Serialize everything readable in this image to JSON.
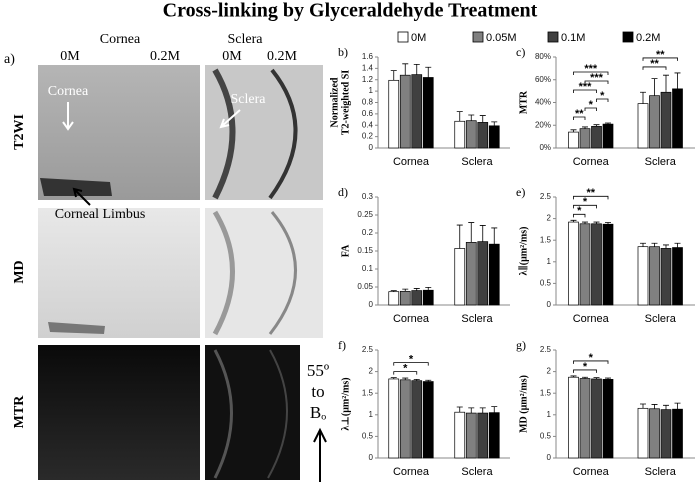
{
  "title": "Cross-linking by Glyceraldehyde Treatment",
  "image_panel": {
    "label": "a)",
    "columns": [
      "Cornea",
      "Sclera"
    ],
    "concentrations": [
      "0M",
      "0.2M",
      "0M",
      "0.2M"
    ],
    "rows": [
      "T2WI",
      "MD",
      "MTR"
    ],
    "annotations": [
      "Cornea",
      "Sclera",
      "Corneal Limbus"
    ],
    "orientation": [
      "55º",
      "to",
      "Bₒ"
    ]
  },
  "legend": [
    {
      "name": "0M",
      "color": "#ffffff"
    },
    {
      "name": "0.05M",
      "color": "#808080"
    },
    {
      "name": "0.1M",
      "color": "#404040"
    },
    {
      "name": "0.2M",
      "color": "#000000"
    }
  ],
  "chart_data": [
    {
      "type": "bar",
      "panel": "b)",
      "ylabel": [
        "Normalized",
        "T2-weighted SI"
      ],
      "categories": [
        "Cornea",
        "Sclera"
      ],
      "ylim": [
        0,
        1.6
      ],
      "yticks": [
        0,
        0.2,
        0.4,
        0.6,
        0.8,
        1,
        1.2,
        1.4,
        1.6
      ],
      "series": [
        {
          "values": [
            1.19,
            0.47
          ],
          "errors": [
            0.17,
            0.17
          ]
        },
        {
          "values": [
            1.28,
            0.48
          ],
          "errors": [
            0.2,
            0.1
          ]
        },
        {
          "values": [
            1.29,
            0.45
          ],
          "errors": [
            0.18,
            0.12
          ]
        },
        {
          "values": [
            1.24,
            0.39
          ],
          "errors": [
            0.18,
            0.07
          ]
        }
      ]
    },
    {
      "type": "bar",
      "panel": "c)",
      "ylabel": [
        "MTR"
      ],
      "categories": [
        "Cornea",
        "Sclera"
      ],
      "ylim": [
        0,
        80
      ],
      "yticks": [
        {
          "value": 0,
          "label": "0%"
        },
        {
          "value": 20,
          "label": "20%"
        },
        {
          "value": 40,
          "label": "40%"
        },
        {
          "value": 60,
          "label": "60%"
        },
        {
          "value": 80,
          "label": "80%"
        }
      ],
      "series": [
        {
          "values": [
            14,
            39
          ],
          "errors": [
            2,
            10
          ]
        },
        {
          "values": [
            17,
            46
          ],
          "errors": [
            1.5,
            15
          ]
        },
        {
          "values": [
            19,
            49
          ],
          "errors": [
            1.5,
            15
          ]
        },
        {
          "values": [
            21,
            52
          ],
          "errors": [
            1,
            14
          ]
        }
      ],
      "annotations": [
        {
          "category": "Cornea",
          "between": [
            "0M",
            "0.05M"
          ],
          "text": "**"
        },
        {
          "category": "Cornea",
          "between": [
            "0.05M",
            "0.1M"
          ],
          "text": "*"
        },
        {
          "category": "Cornea",
          "between": [
            "0.1M",
            "0.2M"
          ],
          "text": "*"
        },
        {
          "category": "Cornea",
          "between": [
            "0M",
            "0.1M"
          ],
          "text": "***"
        },
        {
          "category": "Cornea",
          "between": [
            "0.05M",
            "0.2M"
          ],
          "text": "***"
        },
        {
          "category": "Cornea",
          "between": [
            "0M",
            "0.2M"
          ],
          "text": "***"
        },
        {
          "category": "Sclera",
          "between": [
            "0M",
            "0.1M"
          ],
          "text": "**"
        },
        {
          "category": "Sclera",
          "between": [
            "0M",
            "0.2M"
          ],
          "text": "**"
        }
      ]
    },
    {
      "type": "bar",
      "panel": "d)",
      "ylabel": [
        "FA"
      ],
      "categories": [
        "Cornea",
        "Sclera"
      ],
      "ylim": [
        0,
        0.3
      ],
      "yticks": [
        0,
        0.05,
        0.1,
        0.15,
        0.2,
        0.25,
        0.3
      ],
      "series": [
        {
          "values": [
            0.037,
            0.157
          ],
          "errors": [
            0.003,
            0.065
          ]
        },
        {
          "values": [
            0.038,
            0.174
          ],
          "errors": [
            0.006,
            0.055
          ]
        },
        {
          "values": [
            0.04,
            0.176
          ],
          "errors": [
            0.006,
            0.045
          ]
        },
        {
          "values": [
            0.041,
            0.169
          ],
          "errors": [
            0.008,
            0.045
          ]
        }
      ]
    },
    {
      "type": "bar",
      "panel": "e)",
      "ylabel": [
        "λ∥(μm²/ms)"
      ],
      "categories": [
        "Cornea",
        "Sclera"
      ],
      "ylim": [
        0,
        2.5
      ],
      "yticks": [
        0,
        0.5,
        1,
        1.5,
        2,
        2.5
      ],
      "series": [
        {
          "values": [
            1.92,
            1.35
          ],
          "errors": [
            0.04,
            0.08
          ]
        },
        {
          "values": [
            1.88,
            1.35
          ],
          "errors": [
            0.04,
            0.08
          ]
        },
        {
          "values": [
            1.88,
            1.31
          ],
          "errors": [
            0.04,
            0.08
          ]
        },
        {
          "values": [
            1.87,
            1.33
          ],
          "errors": [
            0.04,
            0.1
          ]
        }
      ],
      "annotations": [
        {
          "category": "Cornea",
          "between": [
            "0M",
            "0.05M"
          ],
          "text": "*"
        },
        {
          "category": "Cornea",
          "between": [
            "0M",
            "0.1M"
          ],
          "text": "*"
        },
        {
          "category": "Cornea",
          "between": [
            "0M",
            "0.2M"
          ],
          "text": "**"
        }
      ]
    },
    {
      "type": "bar",
      "panel": "f)",
      "ylabel": [
        "λ⊥(μm²/ms)"
      ],
      "categories": [
        "Cornea",
        "Sclera"
      ],
      "ylim": [
        0,
        2.5
      ],
      "yticks": [
        0,
        0.5,
        1,
        1.5,
        2,
        2.5
      ],
      "series": [
        {
          "values": [
            1.83,
            1.06
          ],
          "errors": [
            0.03,
            0.12
          ]
        },
        {
          "values": [
            1.81,
            1.04
          ],
          "errors": [
            0.04,
            0.12
          ]
        },
        {
          "values": [
            1.79,
            1.04
          ],
          "errors": [
            0.03,
            0.12
          ]
        },
        {
          "values": [
            1.77,
            1.05
          ],
          "errors": [
            0.03,
            0.14
          ]
        }
      ],
      "annotations": [
        {
          "category": "Cornea",
          "between": [
            "0M",
            "0.1M"
          ],
          "text": "*"
        },
        {
          "category": "Cornea",
          "between": [
            "0M",
            "0.2M"
          ],
          "text": "*"
        }
      ]
    },
    {
      "type": "bar",
      "panel": "g)",
      "ylabel": [
        "MD (μm²/ms)"
      ],
      "categories": [
        "Cornea",
        "Sclera"
      ],
      "ylim": [
        0,
        2.5
      ],
      "yticks": [
        0,
        0.5,
        1,
        1.5,
        2,
        2.5
      ],
      "series": [
        {
          "values": [
            1.87,
            1.15
          ],
          "errors": [
            0.03,
            0.1
          ]
        },
        {
          "values": [
            1.84,
            1.14
          ],
          "errors": [
            0.03,
            0.1
          ]
        },
        {
          "values": [
            1.83,
            1.12
          ],
          "errors": [
            0.03,
            0.1
          ]
        },
        {
          "values": [
            1.82,
            1.13
          ],
          "errors": [
            0.03,
            0.14
          ]
        }
      ],
      "annotations": [
        {
          "category": "Cornea",
          "between": [
            "0M",
            "0.1M"
          ],
          "text": "*"
        },
        {
          "category": "Cornea",
          "between": [
            "0M",
            "0.2M"
          ],
          "text": "*"
        }
      ]
    }
  ]
}
